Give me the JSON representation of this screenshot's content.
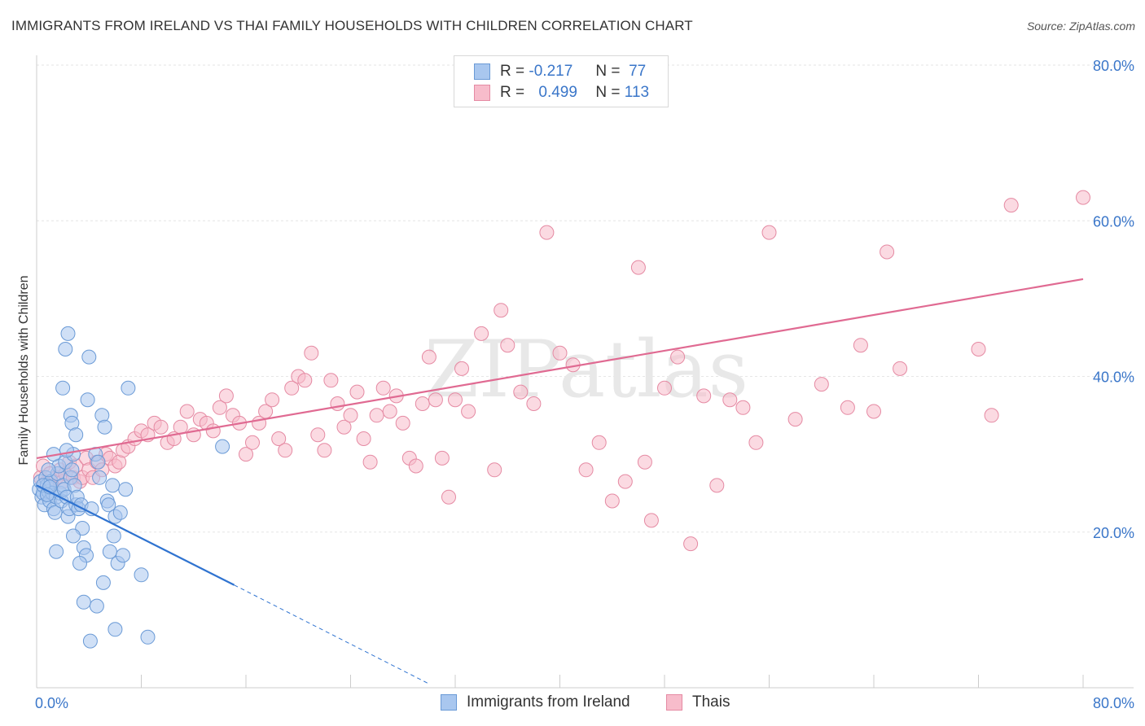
{
  "title": "IMMIGRANTS FROM IRELAND VS THAI FAMILY HOUSEHOLDS WITH CHILDREN CORRELATION CHART",
  "source": "Source: ZipAtlas.com",
  "watermark": "ZIPatlas",
  "legend": {
    "r_label": "R =",
    "n_label": "N =",
    "series": [
      {
        "name": "Immigrants from Ireland",
        "r": "-0.217",
        "n": "77",
        "color": "#a9c7ef",
        "stroke": "#6a9ad6"
      },
      {
        "name": "Thais",
        "r": "0.499",
        "n": "113",
        "color": "#f7bccb",
        "stroke": "#e58aa3"
      }
    ]
  },
  "chart_data": {
    "type": "scatter",
    "title": "IMMIGRANTS FROM IRELAND VS THAI FAMILY HOUSEHOLDS WITH CHILDREN CORRELATION CHART",
    "xlabel": "",
    "ylabel": "Family Households with Children",
    "xlim": [
      0,
      80
    ],
    "ylim": [
      0,
      80
    ],
    "x_tick_labels": [
      "0.0%",
      "80.0%"
    ],
    "y_tick_labels": [
      "20.0%",
      "40.0%",
      "60.0%",
      "80.0%"
    ],
    "y_ticks": [
      20,
      40,
      60,
      80
    ],
    "legend_position": "bottom",
    "series": [
      {
        "name": "Immigrants from Ireland",
        "color": "#6a9ad6",
        "fill": "#a9c7ef",
        "line_color": "#2f73d0",
        "trend": {
          "x": [
            0,
            15.1
          ],
          "y": [
            26.0,
            13.2
          ],
          "dashed_extension": {
            "x": [
              15.1,
              30
            ],
            "y": [
              13.2,
              0.5
            ]
          }
        },
        "points": [
          [
            0.2,
            25.5
          ],
          [
            0.3,
            26.5
          ],
          [
            0.4,
            24.5
          ],
          [
            0.5,
            25.0
          ],
          [
            0.6,
            23.5
          ],
          [
            0.7,
            27.0
          ],
          [
            0.8,
            26.0
          ],
          [
            0.9,
            25.2
          ],
          [
            1.0,
            24.0
          ],
          [
            1.1,
            26.5
          ],
          [
            1.2,
            25.0
          ],
          [
            1.3,
            23.0
          ],
          [
            1.4,
            22.5
          ],
          [
            1.5,
            24.5
          ],
          [
            1.6,
            27.5
          ],
          [
            1.7,
            28.5
          ],
          [
            1.8,
            25.0
          ],
          [
            1.9,
            24.0
          ],
          [
            2.0,
            26.0
          ],
          [
            2.1,
            25.5
          ],
          [
            2.2,
            29.0
          ],
          [
            2.3,
            24.5
          ],
          [
            2.4,
            22.0
          ],
          [
            2.5,
            23.0
          ],
          [
            2.6,
            27.0
          ],
          [
            2.7,
            28.0
          ],
          [
            2.8,
            30.0
          ],
          [
            2.9,
            26.0
          ],
          [
            3.0,
            23.5
          ],
          [
            3.1,
            24.5
          ],
          [
            0.5,
            26.0
          ],
          [
            0.8,
            24.8
          ],
          [
            1.0,
            25.8
          ],
          [
            1.5,
            17.5
          ],
          [
            2.0,
            38.5
          ],
          [
            2.2,
            43.5
          ],
          [
            2.4,
            45.5
          ],
          [
            2.6,
            35.0
          ],
          [
            2.7,
            34.0
          ],
          [
            3.0,
            32.5
          ],
          [
            3.2,
            23.0
          ],
          [
            3.4,
            23.5
          ],
          [
            3.5,
            20.5
          ],
          [
            3.6,
            18.0
          ],
          [
            3.8,
            17.0
          ],
          [
            4.0,
            42.5
          ],
          [
            4.2,
            23.0
          ],
          [
            4.5,
            30.0
          ],
          [
            4.7,
            29.0
          ],
          [
            4.8,
            27.0
          ],
          [
            5.0,
            35.0
          ],
          [
            5.2,
            33.5
          ],
          [
            5.4,
            24.0
          ],
          [
            5.5,
            23.5
          ],
          [
            5.8,
            26.0
          ],
          [
            6.0,
            22.0
          ],
          [
            6.2,
            16.0
          ],
          [
            6.4,
            22.5
          ],
          [
            6.6,
            17.0
          ],
          [
            6.8,
            25.5
          ],
          [
            3.9,
            37.0
          ],
          [
            4.6,
            10.5
          ],
          [
            5.6,
            17.5
          ],
          [
            5.9,
            19.5
          ],
          [
            7.0,
            38.5
          ],
          [
            8.0,
            14.5
          ],
          [
            2.3,
            30.5
          ],
          [
            3.3,
            16.0
          ],
          [
            2.8,
            19.5
          ],
          [
            3.6,
            11.0
          ],
          [
            4.1,
            6.0
          ],
          [
            5.1,
            13.5
          ],
          [
            6.0,
            7.5
          ],
          [
            8.5,
            6.5
          ],
          [
            14.2,
            31.0
          ],
          [
            1.3,
            30.0
          ],
          [
            0.9,
            28.0
          ]
        ]
      },
      {
        "name": "Thais",
        "color": "#e58aa3",
        "fill": "#f7bccb",
        "line_color": "#e06a92",
        "trend": {
          "x": [
            0,
            80
          ],
          "y": [
            29.5,
            52.5
          ]
        },
        "points": [
          [
            0.3,
            27.0
          ],
          [
            0.5,
            28.5
          ],
          [
            0.8,
            26.5
          ],
          [
            1.0,
            27.5
          ],
          [
            1.2,
            26.0
          ],
          [
            1.5,
            27.0
          ],
          [
            1.8,
            28.0
          ],
          [
            2.0,
            26.5
          ],
          [
            2.2,
            27.5
          ],
          [
            2.5,
            29.0
          ],
          [
            2.8,
            27.0
          ],
          [
            3.0,
            28.5
          ],
          [
            3.3,
            26.5
          ],
          [
            3.5,
            27.0
          ],
          [
            3.8,
            29.5
          ],
          [
            4.0,
            28.0
          ],
          [
            4.3,
            27.0
          ],
          [
            4.6,
            29.0
          ],
          [
            5.0,
            28.0
          ],
          [
            5.3,
            30.0
          ],
          [
            5.6,
            29.5
          ],
          [
            6.0,
            28.5
          ],
          [
            6.3,
            29.0
          ],
          [
            6.6,
            30.5
          ],
          [
            7.0,
            31.0
          ],
          [
            7.5,
            32.0
          ],
          [
            8.0,
            33.0
          ],
          [
            8.5,
            32.5
          ],
          [
            9.0,
            34.0
          ],
          [
            9.5,
            33.5
          ],
          [
            10.0,
            31.5
          ],
          [
            10.5,
            32.0
          ],
          [
            11.0,
            33.5
          ],
          [
            11.5,
            35.5
          ],
          [
            12.0,
            32.5
          ],
          [
            12.5,
            34.5
          ],
          [
            13.0,
            34.0
          ],
          [
            13.5,
            33.0
          ],
          [
            14.0,
            36.0
          ],
          [
            14.5,
            37.5
          ],
          [
            15.0,
            35.0
          ],
          [
            15.5,
            34.0
          ],
          [
            16.0,
            30.0
          ],
          [
            16.5,
            31.5
          ],
          [
            17.0,
            34.0
          ],
          [
            17.5,
            35.5
          ],
          [
            18.0,
            37.0
          ],
          [
            18.5,
            32.0
          ],
          [
            19.0,
            30.5
          ],
          [
            19.5,
            38.5
          ],
          [
            20.0,
            40.0
          ],
          [
            20.5,
            39.5
          ],
          [
            21.0,
            43.0
          ],
          [
            21.5,
            32.5
          ],
          [
            22.0,
            30.5
          ],
          [
            22.5,
            39.5
          ],
          [
            23.0,
            36.5
          ],
          [
            23.5,
            33.5
          ],
          [
            24.0,
            35.0
          ],
          [
            24.5,
            38.0
          ],
          [
            25.0,
            32.0
          ],
          [
            25.5,
            29.0
          ],
          [
            26.0,
            35.0
          ],
          [
            26.5,
            38.5
          ],
          [
            27.0,
            35.5
          ],
          [
            27.5,
            37.5
          ],
          [
            28.0,
            34.0
          ],
          [
            28.5,
            29.5
          ],
          [
            29.0,
            28.5
          ],
          [
            29.5,
            36.5
          ],
          [
            30.0,
            42.5
          ],
          [
            30.5,
            37.0
          ],
          [
            31.0,
            29.5
          ],
          [
            31.5,
            24.5
          ],
          [
            32.0,
            37.0
          ],
          [
            32.5,
            41.0
          ],
          [
            33.0,
            35.5
          ],
          [
            34.0,
            45.5
          ],
          [
            35.0,
            28.0
          ],
          [
            35.5,
            48.5
          ],
          [
            36.0,
            44.0
          ],
          [
            37.0,
            38.0
          ],
          [
            38.0,
            36.5
          ],
          [
            39.0,
            58.5
          ],
          [
            40.0,
            43.0
          ],
          [
            41.0,
            41.5
          ],
          [
            42.0,
            28.0
          ],
          [
            43.0,
            31.5
          ],
          [
            44.0,
            24.0
          ],
          [
            45.0,
            26.5
          ],
          [
            46.0,
            54.0
          ],
          [
            47.0,
            21.5
          ],
          [
            48.0,
            38.5
          ],
          [
            49.0,
            42.5
          ],
          [
            50.0,
            18.5
          ],
          [
            51.0,
            37.5
          ],
          [
            52.0,
            26.0
          ],
          [
            53.0,
            37.0
          ],
          [
            54.0,
            36.0
          ],
          [
            55.0,
            31.5
          ],
          [
            56.0,
            58.5
          ],
          [
            58.0,
            34.5
          ],
          [
            60.0,
            39.0
          ],
          [
            62.0,
            36.0
          ],
          [
            63.0,
            44.0
          ],
          [
            64.0,
            35.5
          ],
          [
            65.0,
            56.0
          ],
          [
            66.0,
            41.0
          ],
          [
            72.0,
            43.5
          ],
          [
            73.0,
            35.0
          ],
          [
            74.5,
            62.0
          ],
          [
            80.0,
            63.0
          ],
          [
            46.5,
            29.0
          ]
        ]
      }
    ]
  }
}
